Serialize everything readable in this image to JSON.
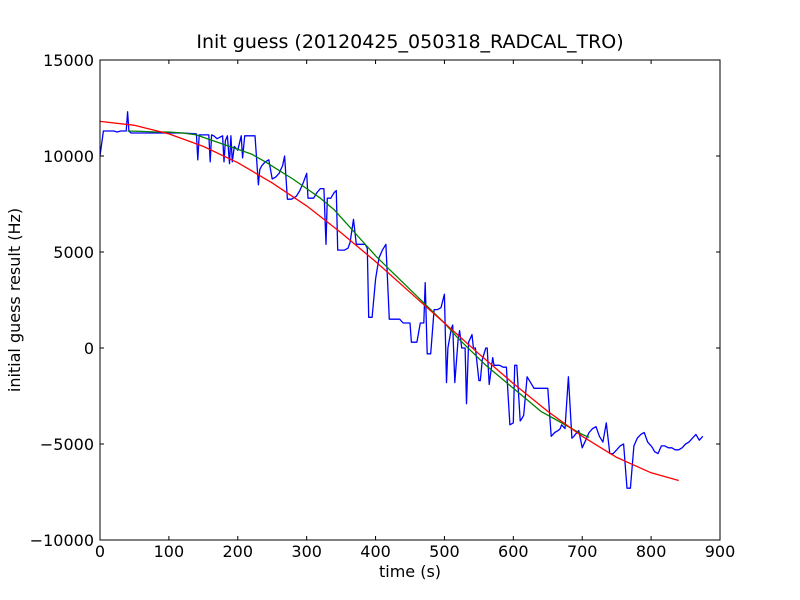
{
  "chart_data": {
    "type": "line",
    "title": "Init guess (20120425_050318_RADCAL_TRO)",
    "xlabel": "time (s)",
    "ylabel": "initial guess result (Hz)",
    "xlim": [
      0,
      900
    ],
    "ylim": [
      -10000,
      15000
    ],
    "xticks": [
      0,
      100,
      200,
      300,
      400,
      500,
      600,
      700,
      800,
      900
    ],
    "yticks": [
      -10000,
      -5000,
      0,
      5000,
      10000,
      15000
    ],
    "xtick_labels": [
      "0",
      "100",
      "200",
      "300",
      "400",
      "500",
      "600",
      "700",
      "800",
      "900"
    ],
    "ytick_labels": [
      "−10000",
      "−5000",
      "0",
      "5000",
      "10000",
      "15000"
    ],
    "grid": false,
    "legend": "none",
    "series": [
      {
        "color": "#0000ff",
        "x": [
          0,
          5,
          10,
          20,
          25,
          30,
          35,
          38,
          40,
          42,
          45,
          50,
          60,
          80,
          100,
          120,
          140,
          142,
          144,
          146,
          150,
          158,
          160,
          162,
          165,
          170,
          178,
          180,
          182,
          185,
          188,
          190,
          192,
          195,
          200,
          205,
          207,
          210,
          215,
          220,
          225,
          230,
          232,
          235,
          240,
          245,
          250,
          255,
          260,
          265,
          268,
          272,
          278,
          285,
          290,
          295,
          300,
          302,
          305,
          310,
          315,
          320,
          325,
          328,
          330,
          335,
          340,
          343,
          345,
          350,
          355,
          360,
          363,
          368,
          372,
          375,
          380,
          385,
          388,
          390,
          395,
          400,
          405,
          410,
          415,
          420,
          425,
          430,
          432,
          435,
          440,
          445,
          450,
          452,
          455,
          460,
          465,
          470,
          472,
          475,
          478,
          480,
          485,
          490,
          495,
          500,
          503,
          505,
          510,
          512,
          515,
          520,
          522,
          525,
          530,
          532,
          535,
          540,
          542,
          545,
          550,
          552,
          555,
          560,
          562,
          565,
          570,
          572,
          575,
          580,
          585,
          590,
          595,
          600,
          602,
          605,
          610,
          612,
          615,
          620,
          625,
          630,
          635,
          640,
          645,
          648,
          650,
          655,
          660,
          665,
          668,
          670,
          675,
          680,
          685,
          688,
          690,
          695,
          700,
          705,
          710,
          715,
          720,
          725,
          730,
          735,
          740,
          745,
          750,
          755,
          760,
          765,
          768,
          770,
          775,
          780,
          785,
          790,
          795,
          800,
          802,
          805,
          810,
          815,
          820,
          825,
          830,
          835,
          840,
          845,
          850,
          855,
          860,
          865,
          870,
          875
        ],
        "y": [
          10000,
          11300,
          11300,
          11300,
          11250,
          11300,
          11300,
          11300,
          12300,
          11300,
          11200,
          11200,
          11200,
          11200,
          11200,
          11200,
          11150,
          9800,
          11100,
          11100,
          11100,
          11100,
          9700,
          11100,
          11050,
          10900,
          11050,
          9700,
          10800,
          11050,
          9600,
          11050,
          9700,
          10500,
          10300,
          11050,
          9900,
          11050,
          11050,
          11050,
          11050,
          8500,
          9300,
          9500,
          9700,
          9800,
          8800,
          8900,
          9100,
          9500,
          10000,
          7750,
          7750,
          7900,
          8200,
          8600,
          9100,
          7800,
          7800,
          7800,
          8100,
          8300,
          8300,
          5400,
          7800,
          7800,
          8100,
          8200,
          5100,
          5100,
          5100,
          5200,
          5500,
          6700,
          5400,
          5400,
          5400,
          5400,
          5200,
          1600,
          1600,
          3600,
          4700,
          5100,
          5400,
          1500,
          1500,
          1500,
          1500,
          1500,
          1300,
          1300,
          1300,
          300,
          300,
          300,
          1300,
          1300,
          3400,
          -300,
          -300,
          -300,
          2000,
          2000,
          2100,
          2800,
          -1800,
          0,
          1000,
          1200,
          -1800,
          500,
          900,
          0,
          0,
          -2900,
          300,
          700,
          0,
          0,
          -1700,
          -1700,
          -600,
          0,
          0,
          -1900,
          -500,
          -900,
          -900,
          -900,
          -1000,
          -1000,
          -4000,
          -3900,
          -900,
          -900,
          -3800,
          -3700,
          -3500,
          -1500,
          -1800,
          -2100,
          -2100,
          -2100,
          -2100,
          -2100,
          -2100,
          -4600,
          -4400,
          -4300,
          -4200,
          -4000,
          -4200,
          -1500,
          -4700,
          -4600,
          -4500,
          -4300,
          -5200,
          -4800,
          -4400,
          -4200,
          -4100,
          -4600,
          -4900,
          -3900,
          -5500,
          -5500,
          -5300,
          -5100,
          -5000,
          -7300,
          -7300,
          -7300,
          -5100,
          -4700,
          -4500,
          -4400,
          -4900,
          -5100,
          -5200,
          -5400,
          -5500,
          -5100,
          -5100,
          -5200,
          -5200,
          -5300,
          -5300,
          -5200,
          -5000,
          -4900,
          -4700,
          -4500,
          -4800,
          -4600
        ]
      },
      {
        "color": "#008000",
        "x": [
          40,
          60,
          80,
          100,
          120,
          140,
          160,
          180,
          200,
          220,
          240,
          260,
          280,
          300,
          320,
          340,
          360,
          380,
          400,
          420,
          440,
          460,
          480,
          500,
          520,
          540,
          560,
          580,
          600,
          620,
          640,
          660,
          680,
          700,
          710
        ],
        "y": [
          11300,
          11280,
          11250,
          11250,
          11200,
          11100,
          10850,
          10600,
          10350,
          10100,
          9700,
          9250,
          8800,
          8300,
          7800,
          7200,
          6400,
          5600,
          4800,
          4100,
          3400,
          2700,
          2000,
          1300,
          500,
          -200,
          -900,
          -1500,
          -2100,
          -2700,
          -3300,
          -3700,
          -4100,
          -4500,
          -4650
        ]
      },
      {
        "color": "#ff0000",
        "x": [
          0,
          50,
          100,
          150,
          200,
          250,
          300,
          350,
          400,
          450,
          500,
          550,
          600,
          650,
          700,
          750,
          800,
          840
        ],
        "y": [
          11800,
          11600,
          11150,
          10500,
          9650,
          8600,
          7400,
          6000,
          4500,
          2900,
          1300,
          -300,
          -1850,
          -3300,
          -4600,
          -5700,
          -6500,
          -6900
        ]
      }
    ]
  }
}
